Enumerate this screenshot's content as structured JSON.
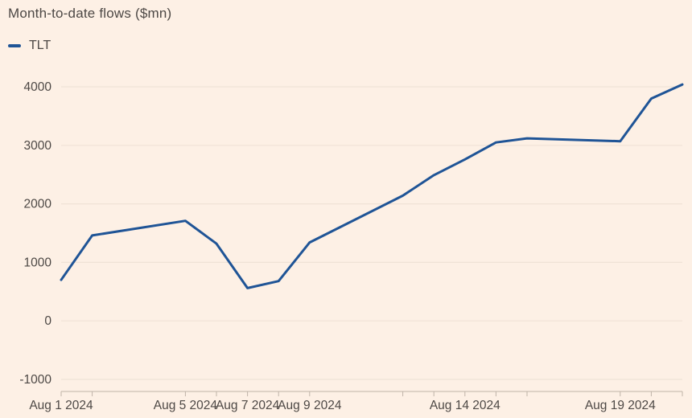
{
  "chart_data": {
    "type": "line",
    "title": "Month-to-date flows ($mn)",
    "xlabel": "",
    "ylabel": "",
    "ylim": [
      -1000,
      4000
    ],
    "yticks": [
      -1000,
      0,
      1000,
      2000,
      3000,
      4000
    ],
    "xticks": [
      "Aug 1 2024",
      "Aug 5 2024",
      "Aug 7 2024",
      "Aug 9 2024",
      "Aug 14 2024",
      "Aug 19 2024"
    ],
    "grid": true,
    "legend_position": "top-left",
    "series": [
      {
        "name": "TLT",
        "color": "#1f5496",
        "x": [
          "Aug 1 2024",
          "Aug 2 2024",
          "Aug 5 2024",
          "Aug 6 2024",
          "Aug 7 2024",
          "Aug 8 2024",
          "Aug 9 2024",
          "Aug 12 2024",
          "Aug 13 2024",
          "Aug 14 2024",
          "Aug 15 2024",
          "Aug 16 2024",
          "Aug 19 2024",
          "Aug 20 2024",
          "Aug 21 2024"
        ],
        "values": [
          700,
          1460,
          1710,
          1320,
          560,
          680,
          1340,
          2140,
          2490,
          2760,
          3050,
          3120,
          3070,
          3800,
          4040
        ]
      }
    ]
  }
}
